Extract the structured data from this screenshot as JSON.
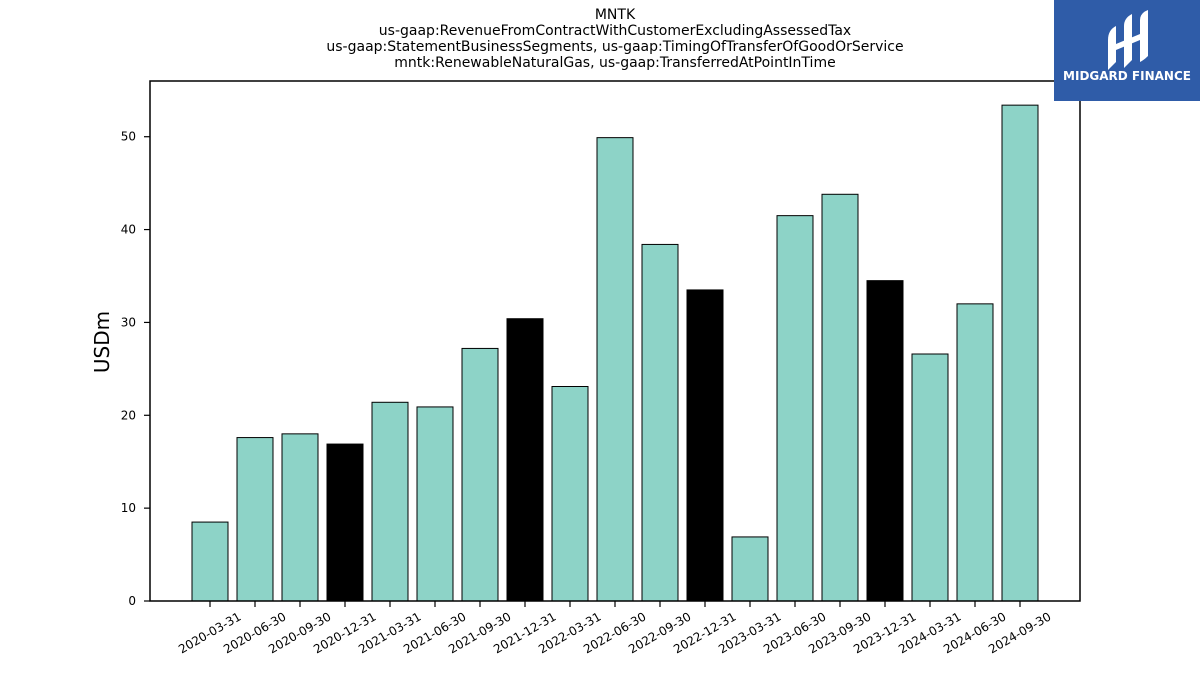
{
  "chart_data": {
    "type": "bar",
    "title_lines": [
      "MNTK",
      "us-gaap:RevenueFromContractWithCustomerExcludingAssessedTax",
      "us-gaap:StatementBusinessSegments, us-gaap:TimingOfTransferOfGoodOrService",
      "mntk:RenewableNaturalGas, us-gaap:TransferredAtPointInTime"
    ],
    "ylabel": "USDm",
    "xlabel": "",
    "ylim": [
      0,
      56
    ],
    "yticks": [
      0,
      10,
      20,
      30,
      40,
      50
    ],
    "categories": [
      "2020-03-31",
      "2020-06-30",
      "2020-09-30",
      "2020-12-31",
      "2021-03-31",
      "2021-06-30",
      "2021-09-30",
      "2021-12-31",
      "2022-03-31",
      "2022-06-30",
      "2022-09-30",
      "2022-12-31",
      "2023-03-31",
      "2023-06-30",
      "2023-09-30",
      "2023-12-31",
      "2024-03-31",
      "2024-06-30",
      "2024-09-30"
    ],
    "values": [
      8.5,
      17.6,
      18.0,
      16.9,
      21.4,
      20.9,
      27.2,
      30.4,
      23.1,
      49.9,
      38.4,
      33.5,
      6.9,
      41.5,
      43.8,
      34.5,
      26.6,
      32.0,
      53.4
    ],
    "highlight": [
      false,
      false,
      false,
      true,
      false,
      false,
      false,
      true,
      false,
      false,
      false,
      true,
      false,
      false,
      false,
      true,
      false,
      false,
      false
    ],
    "colors": {
      "bar": "#8dd3c7",
      "highlight": "#000000",
      "edge": "#000000"
    },
    "grid": false,
    "legend": "none"
  },
  "brand": {
    "name": "MIDGARD FINANCE",
    "logo_icon": "midgard-logo-icon",
    "background": "#2f5ca8"
  }
}
